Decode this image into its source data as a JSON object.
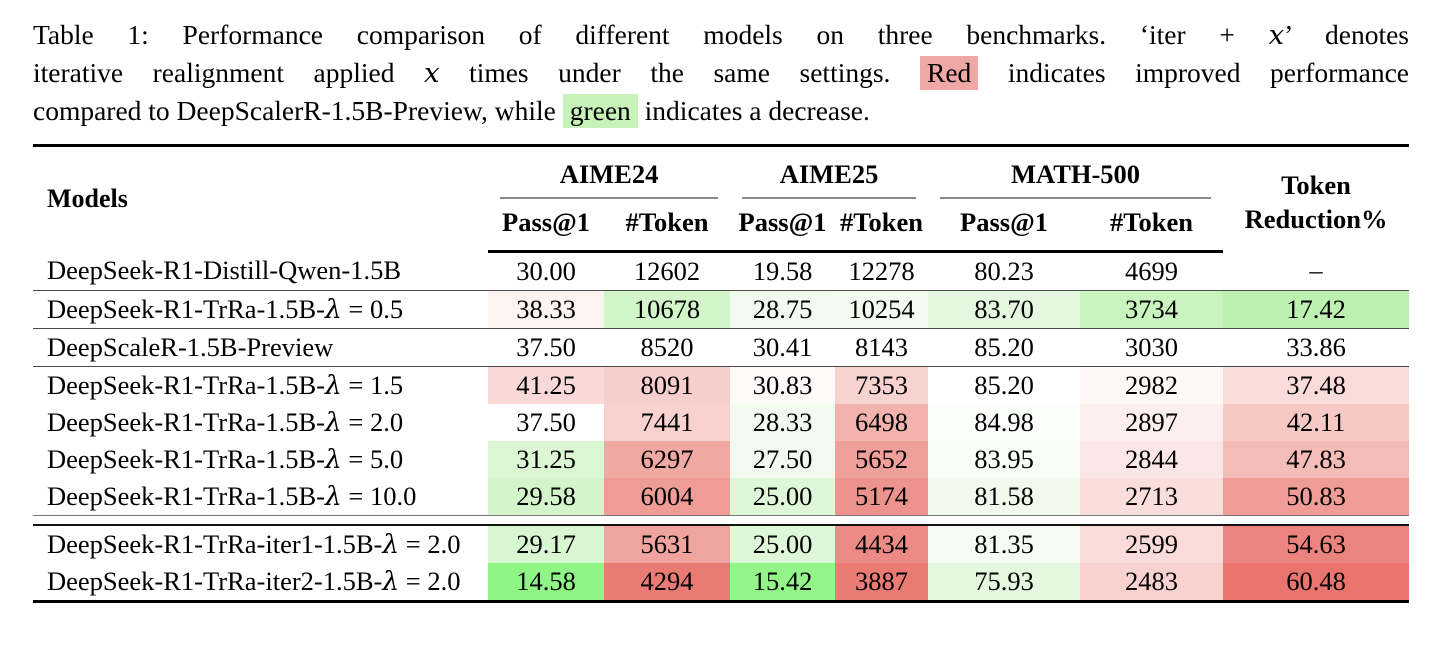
{
  "caption": {
    "line1": {
      "pre": "Table 1: Performance comparison of different models on three benchmarks. ‘iter + ",
      "x": "x",
      "post": "’ denotes"
    },
    "line2": {
      "pre": "iterative realignment applied ",
      "x": "x",
      "mid": " times under the same settings. ",
      "red_word": "Red",
      "post": " indicates improved performance"
    },
    "line3": {
      "pre": "compared to DeepScalerR-1.5B-Preview, while ",
      "green_word": "green",
      "post": " indicates a decrease."
    },
    "red_highlight_color": "#F0A8A6",
    "green_highlight_color": "#C7F3BB"
  },
  "table": {
    "lambda_symbol": "λ",
    "header": {
      "models": "Models",
      "groups": [
        {
          "label": "AIME24"
        },
        {
          "label": "AIME25"
        },
        {
          "label": "MATH-500"
        }
      ],
      "sub_pass": "Pass@1",
      "sub_token": "#Token",
      "token_reduction_line1": "Token",
      "token_reduction_line2": "Reduction%"
    },
    "rows": [
      {
        "name": "DeepSeek-R1-Distill-Qwen-1.5B",
        "lambda": null,
        "rule_after": "thin",
        "cells": [
          {
            "v": "30.00",
            "bg": null
          },
          {
            "v": "12602",
            "bg": null
          },
          {
            "v": "19.58",
            "bg": null
          },
          {
            "v": "12278",
            "bg": null
          },
          {
            "v": "80.23",
            "bg": null
          },
          {
            "v": "4699",
            "bg": null
          },
          {
            "v": "–",
            "bg": null
          }
        ]
      },
      {
        "name": "DeepSeek-R1-TrRa-1.5B-",
        "lambda": "0.5",
        "rule_after": "thin",
        "cells": [
          {
            "v": "38.33",
            "bg": "#FDF4F2"
          },
          {
            "v": "10678",
            "bg": "#D2F5C9"
          },
          {
            "v": "28.75",
            "bg": "#F0FAEE"
          },
          {
            "v": "10254",
            "bg": "#F3FBF1"
          },
          {
            "v": "83.70",
            "bg": "#E3F8DE"
          },
          {
            "v": "3734",
            "bg": "#C9F3BF"
          },
          {
            "v": "17.42",
            "bg": "#BDF1B1"
          }
        ]
      },
      {
        "name": "DeepScaleR-1.5B-Preview",
        "lambda": null,
        "rule_after": "thin",
        "cells": [
          {
            "v": "37.50",
            "bg": null
          },
          {
            "v": "8520",
            "bg": null
          },
          {
            "v": "30.41",
            "bg": null
          },
          {
            "v": "8143",
            "bg": null
          },
          {
            "v": "85.20",
            "bg": null
          },
          {
            "v": "3030",
            "bg": null
          },
          {
            "v": "33.86",
            "bg": null
          }
        ]
      },
      {
        "name": "DeepSeek-R1-TrRa-1.5B-",
        "lambda": "1.5",
        "rule_after": null,
        "cells": [
          {
            "v": "41.25",
            "bg": "#F8D9D7"
          },
          {
            "v": "8091",
            "bg": "#F6CFCC"
          },
          {
            "v": "30.83",
            "bg": "#FEFAFA"
          },
          {
            "v": "7353",
            "bg": "#F7D3D0"
          },
          {
            "v": "85.20",
            "bg": null
          },
          {
            "v": "2982",
            "bg": "#FEF8F7"
          },
          {
            "v": "37.48",
            "bg": "#F9DCDA"
          }
        ]
      },
      {
        "name": "DeepSeek-R1-TrRa-1.5B-",
        "lambda": "2.0",
        "rule_after": null,
        "cells": [
          {
            "v": "37.50",
            "bg": null
          },
          {
            "v": "7441",
            "bg": "#F7D2CF"
          },
          {
            "v": "28.33",
            "bg": "#F1FBEF"
          },
          {
            "v": "6498",
            "bg": "#F2B3AE"
          },
          {
            "v": "84.98",
            "bg": "#FCFEFB"
          },
          {
            "v": "2897",
            "bg": "#FCEFED"
          },
          {
            "v": "42.11",
            "bg": "#F6C9C5"
          }
        ]
      },
      {
        "name": "DeepSeek-R1-TrRa-1.5B-",
        "lambda": "5.0",
        "rule_after": null,
        "cells": [
          {
            "v": "31.25",
            "bg": "#DAF6D3"
          },
          {
            "v": "6297",
            "bg": "#F0A8A3"
          },
          {
            "v": "27.50",
            "bg": "#F0FAEE"
          },
          {
            "v": "5652",
            "bg": "#EFA09B"
          },
          {
            "v": "83.95",
            "bg": "#F8FDF6"
          },
          {
            "v": "2844",
            "bg": "#FBE7E5"
          },
          {
            "v": "47.83",
            "bg": "#F3BCB7"
          }
        ]
      },
      {
        "name": "DeepSeek-R1-TrRa-1.5B-",
        "lambda": "10.0",
        "rule_after": "double",
        "cells": [
          {
            "v": "29.58",
            "bg": "#D4F5CC"
          },
          {
            "v": "6004",
            "bg": "#EF9C97"
          },
          {
            "v": "25.00",
            "bg": "#DDF7D7"
          },
          {
            "v": "5174",
            "bg": "#ED938E"
          },
          {
            "v": "81.58",
            "bg": "#EFFAEC"
          },
          {
            "v": "2713",
            "bg": "#F9DEDC"
          },
          {
            "v": "50.83",
            "bg": "#EF9C97"
          }
        ]
      },
      {
        "name": "DeepSeek-R1-TrRa-iter1-1.5B-",
        "lambda": "2.0",
        "rule_after": null,
        "cells": [
          {
            "v": "29.17",
            "bg": "#D9F6D2"
          },
          {
            "v": "5631",
            "bg": "#F0A49F"
          },
          {
            "v": "25.00",
            "bg": "#DDF7D7"
          },
          {
            "v": "4434",
            "bg": "#EC8A85"
          },
          {
            "v": "81.35",
            "bg": "#F6FCF4"
          },
          {
            "v": "2599",
            "bg": "#F9DCDA"
          },
          {
            "v": "54.63",
            "bg": "#EB837E"
          }
        ]
      },
      {
        "name": "DeepSeek-R1-TrRa-iter2-1.5B-",
        "lambda": "2.0",
        "rule_after": null,
        "cells": [
          {
            "v": "14.58",
            "bg": "#8FF584"
          },
          {
            "v": "4294",
            "bg": "#EA7A74"
          },
          {
            "v": "15.42",
            "bg": "#93F588"
          },
          {
            "v": "3887",
            "bg": "#EA7A74"
          },
          {
            "v": "75.93",
            "bg": "#E3F8DE"
          },
          {
            "v": "2483",
            "bg": "#F7D2CF"
          },
          {
            "v": "60.48",
            "bg": "#E9736D"
          }
        ]
      }
    ]
  }
}
